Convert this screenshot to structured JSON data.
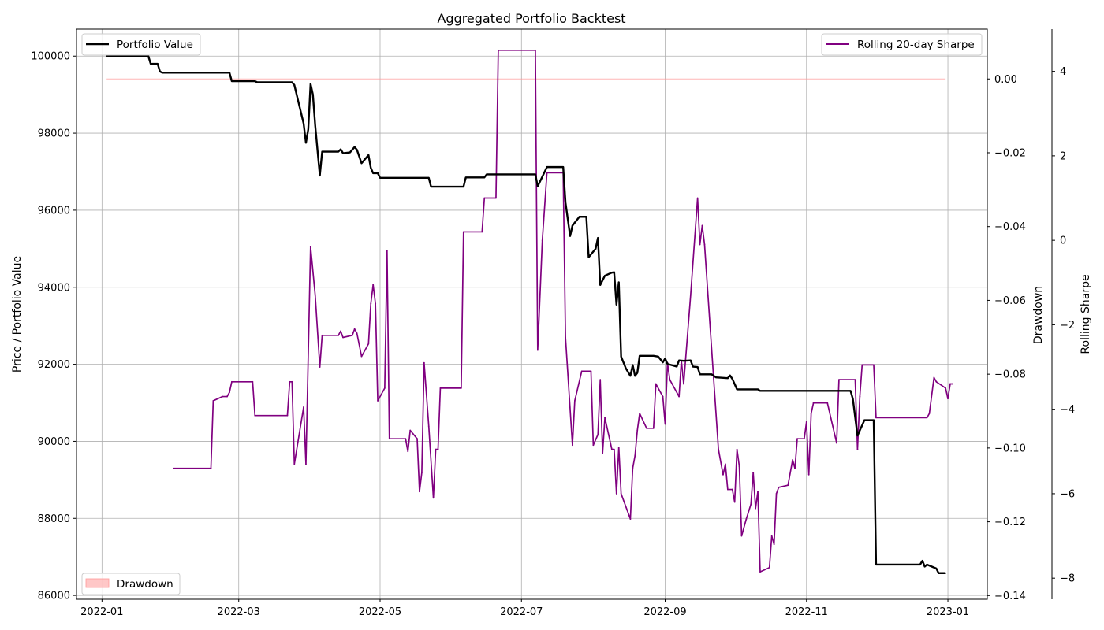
{
  "chart_data": {
    "type": "line",
    "title": "Aggregated Portfolio Backtest",
    "ylabel": "Price / Portfolio Value",
    "y2label": "Drawdown",
    "y3label": "Rolling Sharpe",
    "grid": true,
    "x_ticks": [
      "2022-01",
      "2022-03",
      "2022-05",
      "2022-07",
      "2022-09",
      "2022-11",
      "2023-01"
    ],
    "xlim": [
      "2021-12-21",
      "2023-01-18"
    ],
    "y_ticks": [
      "86000",
      "88000",
      "90000",
      "92000",
      "94000",
      "96000",
      "98000",
      "100000"
    ],
    "ylim": [
      85900,
      100700
    ],
    "y2_ticks": [
      "−0.14",
      "−0.12",
      "−0.10",
      "−0.08",
      "−0.06",
      "−0.04",
      "−0.02",
      "0.00"
    ],
    "y2lim": [
      -0.141,
      0.0135
    ],
    "y3_ticks": [
      "−8",
      "−6",
      "−4",
      "−2",
      "0",
      "2",
      "4"
    ],
    "y3lim": [
      -8.5,
      5.0
    ],
    "legend_portfolio": {
      "label": "Portfolio Value",
      "position": "top-left",
      "color": "#000000"
    },
    "legend_sharpe": {
      "label": "Rolling 20-day Sharpe",
      "position": "top-right",
      "color": "#800080"
    },
    "legend_drawdown": {
      "label": "Drawdown",
      "position": "bottom-left",
      "color": "#ff9999"
    },
    "series": [
      {
        "name": "Portfolio Value",
        "axis": "left",
        "color": "#000000",
        "points": [
          [
            "2022-01-03",
            100000
          ],
          [
            "2022-01-21",
            100000
          ],
          [
            "2022-01-22",
            99800
          ],
          [
            "2022-01-25",
            99800
          ],
          [
            "2022-01-26",
            99600
          ],
          [
            "2022-01-27",
            99570
          ],
          [
            "2022-02-25",
            99570
          ],
          [
            "2022-02-26",
            99350
          ],
          [
            "2022-03-08",
            99350
          ],
          [
            "2022-03-09",
            99320
          ],
          [
            "2022-03-24",
            99320
          ],
          [
            "2022-03-25",
            99250
          ],
          [
            "2022-03-29",
            98250
          ],
          [
            "2022-03-30",
            97750
          ],
          [
            "2022-03-31",
            98100
          ],
          [
            "2022-04-01",
            99280
          ],
          [
            "2022-04-02",
            99000
          ],
          [
            "2022-04-03",
            98200
          ],
          [
            "2022-04-05",
            96900
          ],
          [
            "2022-04-06",
            97520
          ],
          [
            "2022-04-13",
            97520
          ],
          [
            "2022-04-14",
            97580
          ],
          [
            "2022-04-15",
            97480
          ],
          [
            "2022-04-18",
            97500
          ],
          [
            "2022-04-20",
            97640
          ],
          [
            "2022-04-21",
            97570
          ],
          [
            "2022-04-23",
            97220
          ],
          [
            "2022-04-26",
            97430
          ],
          [
            "2022-04-27",
            97100
          ],
          [
            "2022-04-28",
            96960
          ],
          [
            "2022-04-30",
            96960
          ],
          [
            "2022-05-01",
            96840
          ],
          [
            "2022-05-22",
            96840
          ],
          [
            "2022-05-23",
            96610
          ],
          [
            "2022-06-06",
            96610
          ],
          [
            "2022-06-07",
            96850
          ],
          [
            "2022-06-15",
            96850
          ],
          [
            "2022-06-16",
            96930
          ],
          [
            "2022-07-07",
            96930
          ],
          [
            "2022-07-08",
            96620
          ],
          [
            "2022-07-12",
            97120
          ],
          [
            "2022-07-19",
            97120
          ],
          [
            "2022-07-20",
            96200
          ],
          [
            "2022-07-22",
            95330
          ],
          [
            "2022-07-23",
            95600
          ],
          [
            "2022-07-26",
            95830
          ],
          [
            "2022-07-29",
            95830
          ],
          [
            "2022-07-30",
            94780
          ],
          [
            "2022-08-02",
            95000
          ],
          [
            "2022-08-03",
            95280
          ],
          [
            "2022-08-04",
            94060
          ],
          [
            "2022-08-06",
            94300
          ],
          [
            "2022-08-09",
            94380
          ],
          [
            "2022-08-10",
            94390
          ],
          [
            "2022-08-11",
            93550
          ],
          [
            "2022-08-12",
            94130
          ],
          [
            "2022-08-13",
            92200
          ],
          [
            "2022-08-15",
            91900
          ],
          [
            "2022-08-17",
            91700
          ],
          [
            "2022-08-18",
            91980
          ],
          [
            "2022-08-19",
            91700
          ],
          [
            "2022-08-20",
            91780
          ],
          [
            "2022-08-21",
            92220
          ],
          [
            "2022-08-27",
            92220
          ],
          [
            "2022-08-29",
            92200
          ],
          [
            "2022-08-31",
            92050
          ],
          [
            "2022-09-01",
            92150
          ],
          [
            "2022-09-02",
            92010
          ],
          [
            "2022-09-06",
            91940
          ],
          [
            "2022-09-07",
            92100
          ],
          [
            "2022-09-09",
            92090
          ],
          [
            "2022-09-12",
            92100
          ],
          [
            "2022-09-13",
            91940
          ],
          [
            "2022-09-15",
            91930
          ],
          [
            "2022-09-16",
            91740
          ],
          [
            "2022-09-21",
            91740
          ],
          [
            "2022-09-23",
            91660
          ],
          [
            "2022-09-28",
            91640
          ],
          [
            "2022-09-29",
            91710
          ],
          [
            "2022-09-30",
            91620
          ],
          [
            "2022-10-02",
            91350
          ],
          [
            "2022-10-11",
            91350
          ],
          [
            "2022-10-12",
            91310
          ],
          [
            "2022-11-20",
            91310
          ],
          [
            "2022-11-21",
            91100
          ],
          [
            "2022-11-23",
            90150
          ],
          [
            "2022-11-26",
            90550
          ],
          [
            "2022-11-30",
            90550
          ],
          [
            "2022-12-01",
            86800
          ],
          [
            "2022-12-20",
            86800
          ],
          [
            "2022-12-21",
            86900
          ],
          [
            "2022-12-22",
            86750
          ],
          [
            "2022-12-23",
            86800
          ],
          [
            "2022-12-27",
            86700
          ],
          [
            "2022-12-28",
            86580
          ],
          [
            "2022-12-31",
            86580
          ]
        ]
      },
      {
        "name": "Rolling 20-day Sharpe",
        "axis": "right",
        "color": "#800080",
        "points": [
          [
            "2022-02-01",
            -5.4
          ],
          [
            "2022-02-17",
            -5.4
          ],
          [
            "2022-02-18",
            -3.8
          ],
          [
            "2022-02-22",
            -3.7
          ],
          [
            "2022-02-24",
            -3.7
          ],
          [
            "2022-02-25",
            -3.6
          ],
          [
            "2022-02-26",
            -3.35
          ],
          [
            "2022-03-07",
            -3.35
          ],
          [
            "2022-03-08",
            -4.15
          ],
          [
            "2022-03-22",
            -4.15
          ],
          [
            "2022-03-23",
            -3.35
          ],
          [
            "2022-03-24",
            -3.35
          ],
          [
            "2022-03-25",
            -5.3
          ],
          [
            "2022-03-29",
            -3.95
          ],
          [
            "2022-03-30",
            -5.3
          ],
          [
            "2022-04-01",
            -0.15
          ],
          [
            "2022-04-03",
            -1.3
          ],
          [
            "2022-04-05",
            -3.0
          ],
          [
            "2022-04-06",
            -2.25
          ],
          [
            "2022-04-13",
            -2.25
          ],
          [
            "2022-04-14",
            -2.15
          ],
          [
            "2022-04-15",
            -2.3
          ],
          [
            "2022-04-19",
            -2.25
          ],
          [
            "2022-04-20",
            -2.1
          ],
          [
            "2022-04-21",
            -2.2
          ],
          [
            "2022-04-23",
            -2.75
          ],
          [
            "2022-04-26",
            -2.45
          ],
          [
            "2022-04-27",
            -1.5
          ],
          [
            "2022-04-28",
            -1.05
          ],
          [
            "2022-04-29",
            -1.5
          ],
          [
            "2022-04-30",
            -3.8
          ],
          [
            "2022-05-03",
            -3.5
          ],
          [
            "2022-05-04",
            -0.25
          ],
          [
            "2022-05-05",
            -4.7
          ],
          [
            "2022-05-12",
            -4.7
          ],
          [
            "2022-05-13",
            -5.0
          ],
          [
            "2022-05-14",
            -4.5
          ],
          [
            "2022-05-17",
            -4.7
          ],
          [
            "2022-05-18",
            -5.95
          ],
          [
            "2022-05-19",
            -5.5
          ],
          [
            "2022-05-20",
            -2.9
          ],
          [
            "2022-05-22",
            -4.4
          ],
          [
            "2022-05-24",
            -6.1
          ],
          [
            "2022-05-25",
            -4.95
          ],
          [
            "2022-05-26",
            -4.95
          ],
          [
            "2022-05-27",
            -3.5
          ],
          [
            "2022-06-05",
            -3.5
          ],
          [
            "2022-06-06",
            0.2
          ],
          [
            "2022-06-14",
            0.2
          ],
          [
            "2022-06-15",
            1.0
          ],
          [
            "2022-06-20",
            1.0
          ],
          [
            "2022-06-21",
            4.5
          ],
          [
            "2022-07-07",
            4.5
          ],
          [
            "2022-07-08",
            -2.6
          ],
          [
            "2022-07-10",
            0.0
          ],
          [
            "2022-07-12",
            1.6
          ],
          [
            "2022-07-19",
            1.6
          ],
          [
            "2022-07-20",
            -2.3
          ],
          [
            "2022-07-23",
            -4.85
          ],
          [
            "2022-07-24",
            -3.8
          ],
          [
            "2022-07-27",
            -3.1
          ],
          [
            "2022-07-31",
            -3.1
          ],
          [
            "2022-08-01",
            -4.85
          ],
          [
            "2022-08-03",
            -4.6
          ],
          [
            "2022-08-04",
            -3.3
          ],
          [
            "2022-08-05",
            -5.05
          ],
          [
            "2022-08-06",
            -4.2
          ],
          [
            "2022-08-09",
            -4.95
          ],
          [
            "2022-08-10",
            -4.95
          ],
          [
            "2022-08-11",
            -6.0
          ],
          [
            "2022-08-12",
            -4.9
          ],
          [
            "2022-08-13",
            -6.0
          ],
          [
            "2022-08-17",
            -6.6
          ],
          [
            "2022-08-18",
            -5.4
          ],
          [
            "2022-08-19",
            -5.1
          ],
          [
            "2022-08-20",
            -4.5
          ],
          [
            "2022-08-21",
            -4.1
          ],
          [
            "2022-08-24",
            -4.45
          ],
          [
            "2022-08-27",
            -4.45
          ],
          [
            "2022-08-28",
            -3.4
          ],
          [
            "2022-08-31",
            -3.7
          ],
          [
            "2022-09-01",
            -4.35
          ],
          [
            "2022-09-02",
            -2.9
          ],
          [
            "2022-09-03",
            -3.3
          ],
          [
            "2022-09-07",
            -3.7
          ],
          [
            "2022-09-08",
            -2.85
          ],
          [
            "2022-09-09",
            -3.4
          ],
          [
            "2022-09-12",
            -1.3
          ],
          [
            "2022-09-15",
            1.0
          ],
          [
            "2022-09-16",
            -0.1
          ],
          [
            "2022-09-17",
            0.35
          ],
          [
            "2022-09-18",
            -0.1
          ],
          [
            "2022-09-24",
            -4.95
          ],
          [
            "2022-09-26",
            -5.55
          ],
          [
            "2022-09-27",
            -5.3
          ],
          [
            "2022-09-28",
            -5.9
          ],
          [
            "2022-09-30",
            -5.9
          ],
          [
            "2022-10-01",
            -6.2
          ],
          [
            "2022-10-02",
            -4.95
          ],
          [
            "2022-10-03",
            -5.35
          ],
          [
            "2022-10-04",
            -7.0
          ],
          [
            "2022-10-06",
            -6.6
          ],
          [
            "2022-10-08",
            -6.25
          ],
          [
            "2022-10-09",
            -5.5
          ],
          [
            "2022-10-10",
            -6.35
          ],
          [
            "2022-10-11",
            -5.95
          ],
          [
            "2022-10-12",
            -7.85
          ],
          [
            "2022-10-16",
            -7.75
          ],
          [
            "2022-10-17",
            -7.0
          ],
          [
            "2022-10-18",
            -7.2
          ],
          [
            "2022-10-19",
            -6.0
          ],
          [
            "2022-10-20",
            -5.85
          ],
          [
            "2022-10-24",
            -5.8
          ],
          [
            "2022-10-26",
            -5.2
          ],
          [
            "2022-10-27",
            -5.4
          ],
          [
            "2022-10-28",
            -4.7
          ],
          [
            "2022-10-31",
            -4.7
          ],
          [
            "2022-11-01",
            -4.3
          ],
          [
            "2022-11-02",
            -5.55
          ],
          [
            "2022-11-03",
            -4.1
          ],
          [
            "2022-11-04",
            -3.85
          ],
          [
            "2022-11-10",
            -3.85
          ],
          [
            "2022-11-14",
            -4.8
          ],
          [
            "2022-11-15",
            -3.3
          ],
          [
            "2022-11-22",
            -3.3
          ],
          [
            "2022-11-23",
            -4.95
          ],
          [
            "2022-11-24",
            -3.7
          ],
          [
            "2022-11-25",
            -2.95
          ],
          [
            "2022-11-30",
            -2.95
          ],
          [
            "2022-12-01",
            -4.2
          ],
          [
            "2022-12-23",
            -4.2
          ],
          [
            "2022-12-24",
            -4.1
          ],
          [
            "2022-12-26",
            -3.25
          ],
          [
            "2022-12-27",
            -3.35
          ],
          [
            "2022-12-31",
            -3.5
          ],
          [
            "2023-01-01",
            -3.75
          ],
          [
            "2023-01-02",
            -3.4
          ],
          [
            "2023-01-03",
            -3.4
          ]
        ]
      },
      {
        "name": "Drawdown",
        "axis": "drawdown",
        "type": "area",
        "color": "#ff9999",
        "fill_opacity": 0.5,
        "points": [
          [
            "2022-01-03",
            0.0
          ],
          [
            "2022-01-21",
            0.0
          ],
          [
            "2022-01-22",
            0.0
          ],
          [
            "2022-01-25",
            0.0
          ],
          [
            "2022-01-26",
            0.0
          ],
          [
            "2022-01-27",
            0.0
          ],
          [
            "2022-02-25",
            0.0
          ],
          [
            "2022-02-26",
            0.0
          ],
          [
            "2022-03-08",
            0.0
          ],
          [
            "2022-03-24",
            0.0
          ],
          [
            "2022-03-25",
            0.0
          ],
          [
            "2022-03-29",
            0.0
          ],
          [
            "2022-04-05",
            0.0
          ],
          [
            "2022-04-30",
            0.0
          ],
          [
            "2022-05-01",
            0.0
          ],
          [
            "2022-06-16",
            0.0
          ],
          [
            "2022-07-07",
            0.0
          ],
          [
            "2022-07-08",
            0.0
          ],
          [
            "2022-07-19",
            0.0
          ],
          [
            "2022-07-20",
            0.0
          ],
          [
            "2022-08-12",
            0.0
          ],
          [
            "2022-08-13",
            0.0
          ],
          [
            "2022-09-30",
            0.0
          ],
          [
            "2022-10-02",
            0.0
          ],
          [
            "2022-11-20",
            0.0
          ],
          [
            "2022-11-21",
            0.0
          ],
          [
            "2022-11-23",
            0.0
          ],
          [
            "2022-11-30",
            0.0
          ],
          [
            "2022-12-01",
            0.0
          ],
          [
            "2022-12-31",
            0.0
          ]
        ]
      }
    ]
  }
}
